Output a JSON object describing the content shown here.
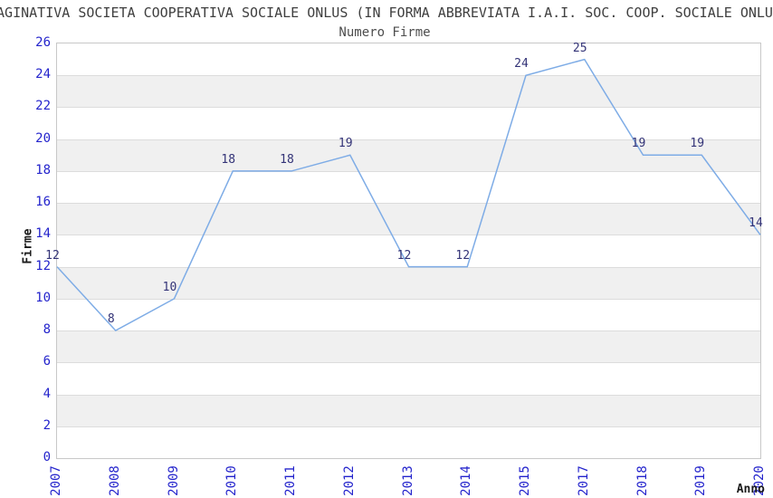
{
  "header": {
    "title": "AGINATIVA SOCIETA COOPERATIVA SOCIALE ONLUS (IN FORMA ABBREVIATA I.A.I. SOC. COOP. SOCIALE ONLU",
    "subtitle": "Numero Firme"
  },
  "chart_data": {
    "type": "line",
    "title": "Numero Firme",
    "xlabel": "Anno",
    "ylabel": "Firme",
    "categories": [
      "2007",
      "2008",
      "2009",
      "2010",
      "2011",
      "2012",
      "2013",
      "2014",
      "2015",
      "2017",
      "2018",
      "2019",
      "2020"
    ],
    "values": [
      12,
      8,
      10,
      18,
      18,
      19,
      12,
      12,
      24,
      25,
      19,
      19,
      14
    ],
    "ylim": [
      0,
      26
    ],
    "ytick_step": 2,
    "grid": true,
    "legend": "none",
    "colors": {
      "line": "#7eace6",
      "tick_label": "#2424cc",
      "data_label": "#333377",
      "band_even": "#ffffff",
      "band_odd": "#f0f0f0",
      "gridline": "#dcdcdc",
      "plot_border": "#c8c8c8"
    }
  }
}
